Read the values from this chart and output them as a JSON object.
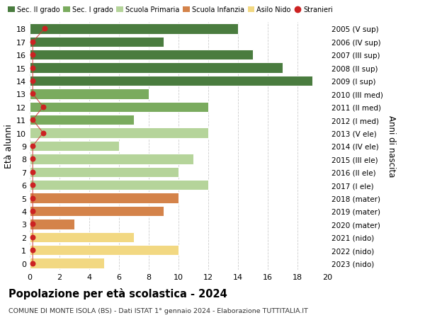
{
  "ages": [
    18,
    17,
    16,
    15,
    14,
    13,
    12,
    11,
    10,
    9,
    8,
    7,
    6,
    5,
    4,
    3,
    2,
    1,
    0
  ],
  "values": [
    14,
    9,
    15,
    17,
    19,
    8,
    12,
    7,
    12,
    6,
    11,
    10,
    12,
    10,
    9,
    3,
    7,
    10,
    5
  ],
  "right_labels": [
    "2005 (V sup)",
    "2006 (IV sup)",
    "2007 (III sup)",
    "2008 (II sup)",
    "2009 (I sup)",
    "2010 (III med)",
    "2011 (II med)",
    "2012 (I med)",
    "2013 (V ele)",
    "2014 (IV ele)",
    "2015 (III ele)",
    "2016 (II ele)",
    "2017 (I ele)",
    "2018 (mater)",
    "2019 (mater)",
    "2020 (mater)",
    "2021 (nido)",
    "2022 (nido)",
    "2023 (nido)"
  ],
  "bar_colors": [
    "#4a7c3f",
    "#4a7c3f",
    "#4a7c3f",
    "#4a7c3f",
    "#4a7c3f",
    "#7aab5e",
    "#7aab5e",
    "#7aab5e",
    "#b5d49a",
    "#b5d49a",
    "#b5d49a",
    "#b5d49a",
    "#b5d49a",
    "#d4834a",
    "#d4834a",
    "#d4834a",
    "#f2d882",
    "#f2d882",
    "#f2d882"
  ],
  "stranieri_x": [
    1.0,
    0.2,
    0.2,
    0.2,
    0.2,
    0.2,
    0.9,
    0.2,
    0.9,
    0.2,
    0.2,
    0.2,
    0.2,
    0.2,
    0.2,
    0.2,
    0.2,
    0.2,
    0.2
  ],
  "legend_colors": [
    "#4a7c3f",
    "#7aab5e",
    "#b5d49a",
    "#d4834a",
    "#f2d882",
    "#cc2222"
  ],
  "legend_labels": [
    "Sec. II grado",
    "Sec. I grado",
    "Scuola Primaria",
    "Scuola Infanzia",
    "Asilo Nido",
    "Stranieri"
  ],
  "xlim": [
    0,
    20
  ],
  "ylabel": "Età alunni",
  "right_ylabel": "Anni di nascita",
  "title": "Popolazione per età scolastica - 2024",
  "subtitle": "COMUNE DI MONTE ISOLA (BS) - Dati ISTAT 1° gennaio 2024 - Elaborazione TUTTITALIA.IT",
  "background_color": "#ffffff",
  "grid_color": "#cccccc"
}
